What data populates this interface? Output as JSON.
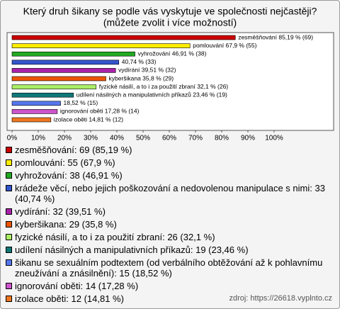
{
  "chart_data": {
    "type": "bar",
    "orientation": "horizontal",
    "title": "Který druh šikany se podle vás vyskytuje ve společnosti nejčastěji?",
    "subtitle": "(můžete zvolit i více možností)",
    "categories": [
      "zesměšňování: 69 (85,19 %)",
      "pomlouvání: 55 (67,9 %)",
      "vyhrožování: 38 (46,91 %)",
      "krádeže věcí, nebo jejich poškozování a nedovolenou manipulace s nimi: 33 (40,74 %)",
      "vydírání: 32 (39,51 %)",
      "kyberšikana: 29 (35,8 %)",
      "fyzické násilí, a to i za použití zbraní: 26 (32,1 %)",
      "udílení násilných a manipulativních příkazů: 19 (23,46 %)",
      "šikanu se sexuálním podtextem (od verbálního obtěžování až k pohlavnímu zneužívání a znásilnění): 15 (18,52 %)",
      "ignorování oběti: 14 (17,28 %)",
      "izolace oběti: 12 (14,81 %)"
    ],
    "values": [
      85.19,
      67.9,
      46.91,
      40.74,
      39.51,
      35.8,
      32.1,
      23.46,
      18.52,
      17.28,
      14.81
    ],
    "value_labels": [
      "zesměšňování 85,19 % (69)",
      "pomlouvání 67,9 % (55)",
      "vyhrožování 46,91 % (38)",
      "40,74 % (33)",
      "vydírání 39,51 % (32)",
      "kyberšikana 35,8 % (29)",
      "fyzické násilí, a to i za použití zbraní 32,1 % (26)",
      "udílení násilných a manipulativních příkazů 23,46 % (19)",
      "18,52 % (15)",
      "ignorování oběti 17,28 % (14)",
      "izolace oběti 14,81 % (12)"
    ],
    "colors": [
      "#cc0000",
      "#ffee00",
      "#22aa22",
      "#3355cc",
      "#aa22aa",
      "#ee5500",
      "#aaee66",
      "#117777",
      "#5577ee",
      "#cc55cc",
      "#ee7722"
    ],
    "xlim": [
      0,
      100
    ],
    "xticks": [
      {
        "value": 0,
        "label": "0%"
      },
      {
        "value": 10,
        "label": "10%"
      },
      {
        "value": 20,
        "label": "20%"
      },
      {
        "value": 30,
        "label": "30%"
      },
      {
        "value": 40,
        "label": "40%"
      },
      {
        "value": 50,
        "label": "50%"
      },
      {
        "value": 60,
        "label": "60%"
      },
      {
        "value": 70,
        "label": "70%"
      },
      {
        "value": 80,
        "label": "80%"
      },
      {
        "value": 90,
        "label": "90%"
      },
      {
        "value": 100,
        "label": "100%"
      }
    ],
    "source": "zdroj: https://26618.vyplnto.cz"
  }
}
